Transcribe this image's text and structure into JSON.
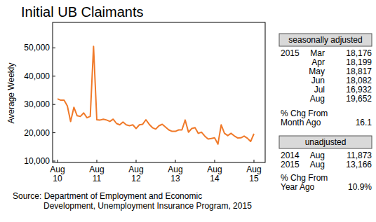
{
  "chart_data": {
    "type": "line",
    "title": "Initial UB Claimants",
    "y_label": "Average Weekly",
    "source": [
      "Source: Department of Employment and Economic",
      "Development, Unemployment Insurance Program, 2015"
    ],
    "categories": [
      "Aug 10",
      null,
      null,
      null,
      null,
      null,
      null,
      null,
      null,
      null,
      null,
      null,
      "Aug 11",
      null,
      null,
      null,
      null,
      null,
      null,
      null,
      null,
      null,
      null,
      null,
      "Aug 12",
      null,
      null,
      null,
      null,
      null,
      null,
      null,
      null,
      null,
      null,
      null,
      "Aug 13",
      null,
      null,
      null,
      null,
      null,
      null,
      null,
      null,
      null,
      null,
      null,
      "Aug 14",
      null,
      null,
      null,
      null,
      null,
      null,
      null,
      null,
      null,
      null,
      null,
      "Aug 15"
    ],
    "values": [
      32000,
      31500,
      31500,
      29500,
      24000,
      29000,
      26000,
      25800,
      27000,
      25300,
      25800,
      50500,
      24600,
      24500,
      24800,
      24500,
      24000,
      24800,
      23300,
      22800,
      23800,
      22800,
      22500,
      22800,
      21500,
      22800,
      23000,
      24600,
      23000,
      21800,
      21300,
      22500,
      23000,
      22000,
      21000,
      20500,
      20500,
      21000,
      21000,
      24500,
      20200,
      21500,
      21800,
      19800,
      20200,
      18800,
      17800,
      18000,
      18200,
      16000,
      22800,
      19800,
      19000,
      19800,
      18900,
      18176,
      18199,
      18817,
      18082,
      16932,
      19652
    ],
    "color": "#f07a2a",
    "ylim": [
      10000,
      58000
    ],
    "yticks": [
      {
        "value": 10000,
        "label": "10,000"
      },
      {
        "value": 20000,
        "label": "20,000"
      },
      {
        "value": 30000,
        "label": "30,000"
      },
      {
        "value": 40000,
        "label": "40,000"
      },
      {
        "value": 50000,
        "label": "50,000"
      }
    ],
    "grid": false
  },
  "panel": {
    "header1": "seasonally adjusted",
    "rows1": [
      {
        "year": "2015",
        "month": "Mar",
        "value": "18,176"
      },
      {
        "month": "Apr",
        "value": "18,199"
      },
      {
        "month": "May",
        "value": "18,817"
      },
      {
        "month": "Jun",
        "value": "18,082"
      },
      {
        "month": "Jul",
        "value": "16,932"
      },
      {
        "month": "Aug",
        "value": "19,652"
      }
    ],
    "change1": {
      "label": "% Chg From",
      "sub": "Month Ago",
      "value": "16.1"
    },
    "header2": "unadjusted",
    "rows2": [
      {
        "year": "2014",
        "month": "Aug",
        "value": "11,873"
      },
      {
        "year": "2015",
        "month": "Aug",
        "value": "13,166"
      }
    ],
    "change2": {
      "label": "% Chg From",
      "sub": "Year Ago",
      "value": "10.9%"
    }
  }
}
